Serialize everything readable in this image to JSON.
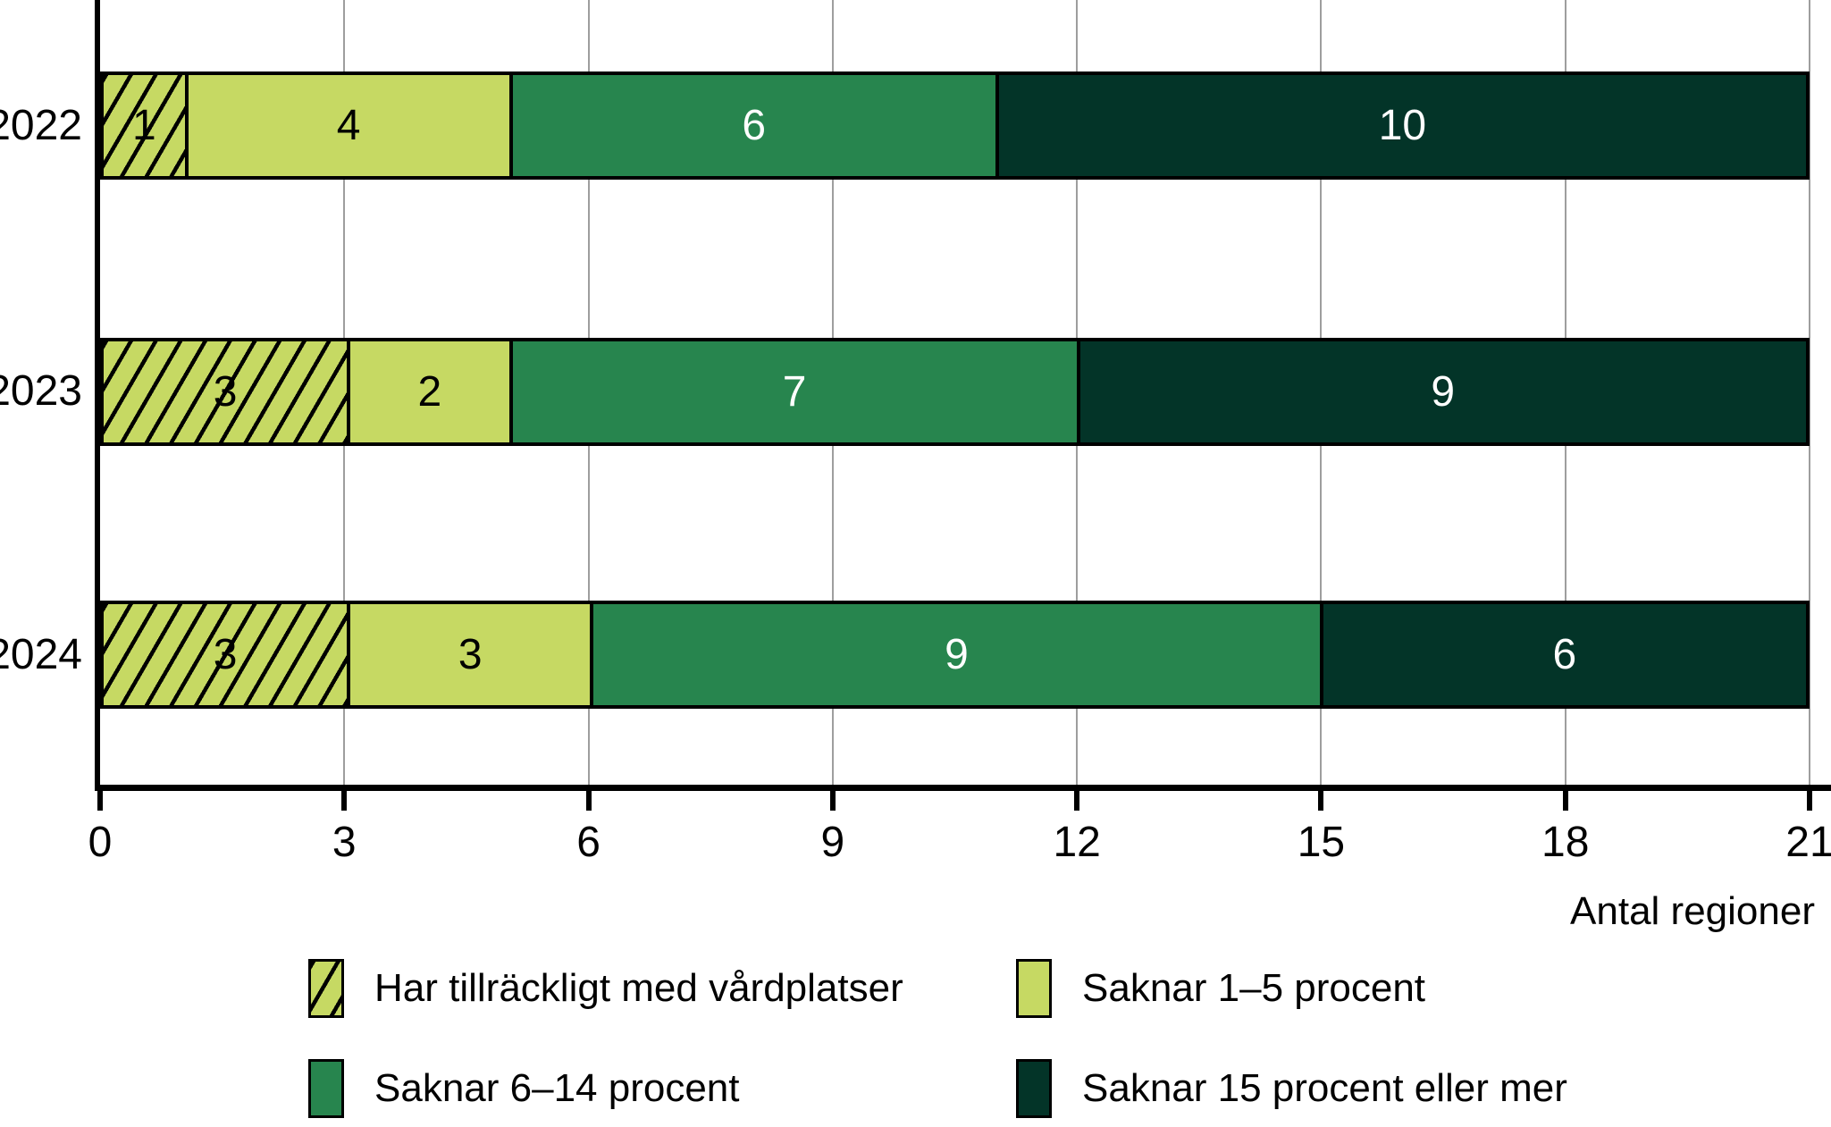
{
  "chart_data": {
    "type": "bar",
    "orientation": "horizontal",
    "stacked": true,
    "categories": [
      "2022",
      "2023",
      "2024"
    ],
    "series": [
      {
        "name": "Har tillräckligt med vårdplatser",
        "values": [
          1,
          3,
          3
        ],
        "color": "#c6d963",
        "pattern": "diagonal-hatch",
        "hatch_line_color": "#000000",
        "label_color": "#000000"
      },
      {
        "name": "Saknar 1–5 procent",
        "values": [
          4,
          2,
          3
        ],
        "color": "#c6d963",
        "pattern": "solid",
        "label_color": "#000000"
      },
      {
        "name": "Saknar 6–14 procent",
        "values": [
          6,
          7,
          9
        ],
        "color": "#27854e",
        "pattern": "solid",
        "label_color": "#ffffff"
      },
      {
        "name": "Saknar 15 procent eller mer",
        "values": [
          10,
          9,
          6
        ],
        "color": "#033428",
        "pattern": "solid",
        "label_color": "#ffffff"
      }
    ],
    "xlabel": "Antal regioner",
    "x_ticks": [
      0,
      3,
      6,
      9,
      12,
      15,
      18,
      21
    ],
    "xlim": [
      0,
      21
    ],
    "grid": "vertical",
    "gridline_color": "#9e9e9e",
    "legend_position": "bottom",
    "legend_layout": [
      [
        "Har tillräckligt med vårdplatser",
        "Saknar 1–5 procent"
      ],
      [
        "Saknar 6–14 procent",
        "Saknar 15 procent eller mer"
      ]
    ]
  }
}
